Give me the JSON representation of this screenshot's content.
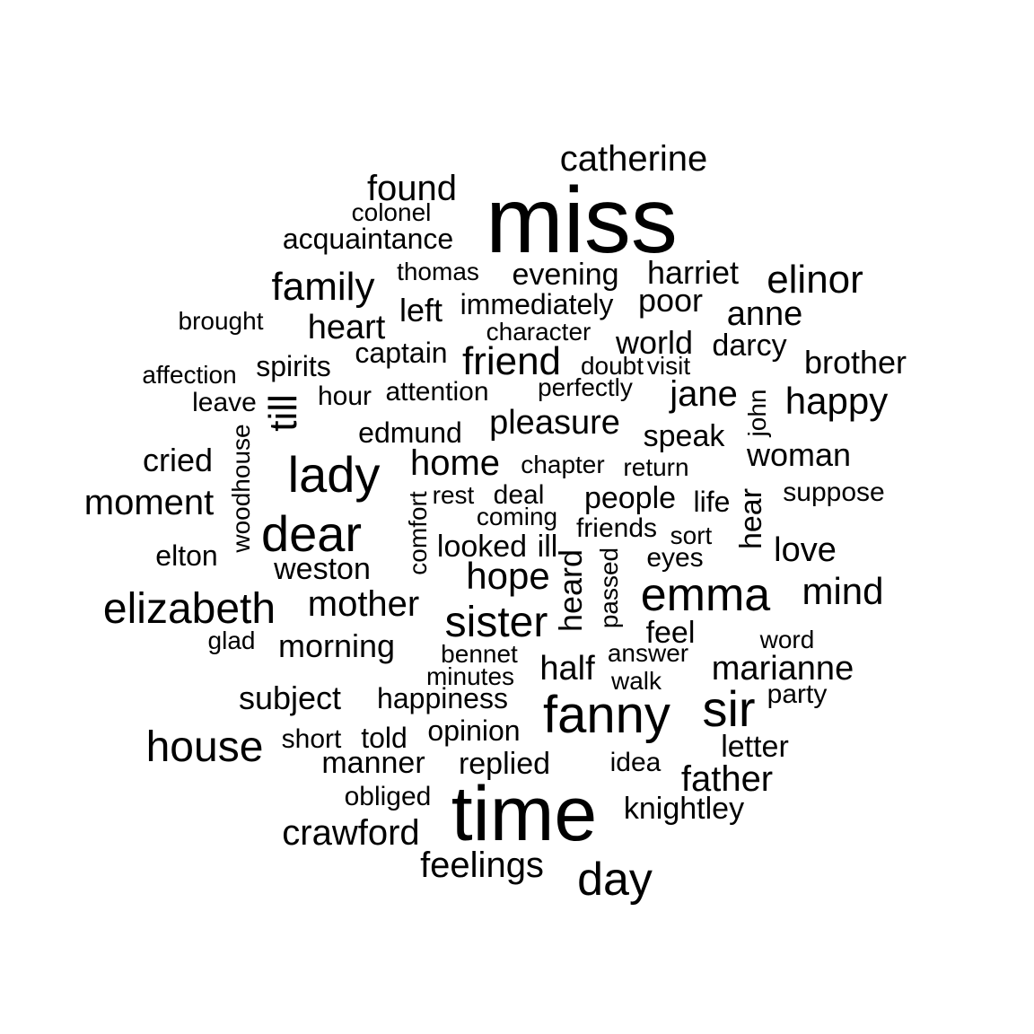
{
  "words": [
    "miss",
    "time",
    "fanny",
    "sir",
    "emma",
    "dear",
    "lady",
    "elizabeth",
    "sister",
    "house",
    "catherine",
    "elinor",
    "day",
    "family",
    "friend",
    "heart",
    "home",
    "hope",
    "pleasure",
    "mother",
    "moment",
    "marianne",
    "mind",
    "happy",
    "jane",
    "father",
    "crawford",
    "feelings",
    "found",
    "harriet",
    "evening",
    "anne",
    "morning",
    "weston",
    "subject",
    "half",
    "brother",
    "speak",
    "woman",
    "love",
    "people",
    "replied",
    "manner",
    "world",
    "poor",
    "immediately",
    "acquaintance",
    "left",
    "captain",
    "darcy",
    "spirits",
    "till",
    "heard",
    "cried",
    "elton",
    "hour",
    "attention",
    "edmund",
    "chapter",
    "return",
    "rest",
    "deal",
    "coming",
    "looked",
    "ill",
    "friends",
    "sort",
    "eyes",
    "life",
    "suppose",
    "happiness",
    "opinion",
    "told",
    "short",
    "letter",
    "party",
    "word",
    "feel",
    "answer",
    "walk",
    "minutes",
    "bennet",
    "glad",
    "knightley",
    "idea",
    "obliged",
    "affection",
    "brought",
    "leave",
    "thomas",
    "colonel",
    "character",
    "doubt",
    "visit",
    "perfectly",
    "john",
    "hear",
    "woodhouse",
    "comfort",
    "passed"
  ]
}
